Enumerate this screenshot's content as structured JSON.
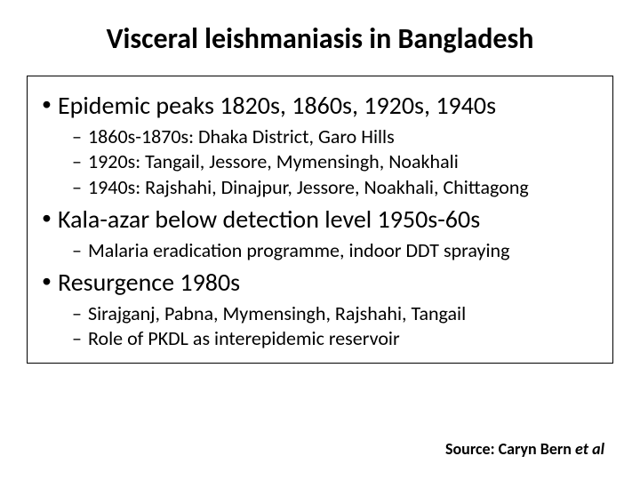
{
  "title": "Visceral leishmaniasis in Bangladesh",
  "box": {
    "items": [
      {
        "level": 1,
        "text": "Epidemic peaks 1820s, 1860s, 1920s, 1940s"
      },
      {
        "level": 2,
        "text": "1860s-1870s: Dhaka District, Garo Hills"
      },
      {
        "level": 2,
        "text": "1920s: Tangail, Jessore, Mymensingh, Noakhali"
      },
      {
        "level": 2,
        "text": "1940s: Rajshahi, Dinajpur, Jessore, Noakhali, Chittagong"
      },
      {
        "level": 1,
        "text": "Kala-azar below detection level 1950s-60s"
      },
      {
        "level": 2,
        "text": "Malaria eradication programme, indoor DDT spraying"
      },
      {
        "level": 1,
        "text": "Resurgence 1980s"
      },
      {
        "level": 2,
        "text": "Sirajganj, Pabna, Mymensingh, Rajshahi, Tangail"
      },
      {
        "level": 2,
        "text": "Role of PKDL as interepidemic reservoir"
      }
    ]
  },
  "source": {
    "label": "Source: Caryn Bern ",
    "etal": "et al"
  },
  "style": {
    "title_fontsize": 32,
    "lvl1_fontsize": 28,
    "lvl2_fontsize": 22,
    "source_fontsize": 18,
    "text_color": "#000000",
    "background_color": "#ffffff",
    "box_border_color": "#000000"
  }
}
